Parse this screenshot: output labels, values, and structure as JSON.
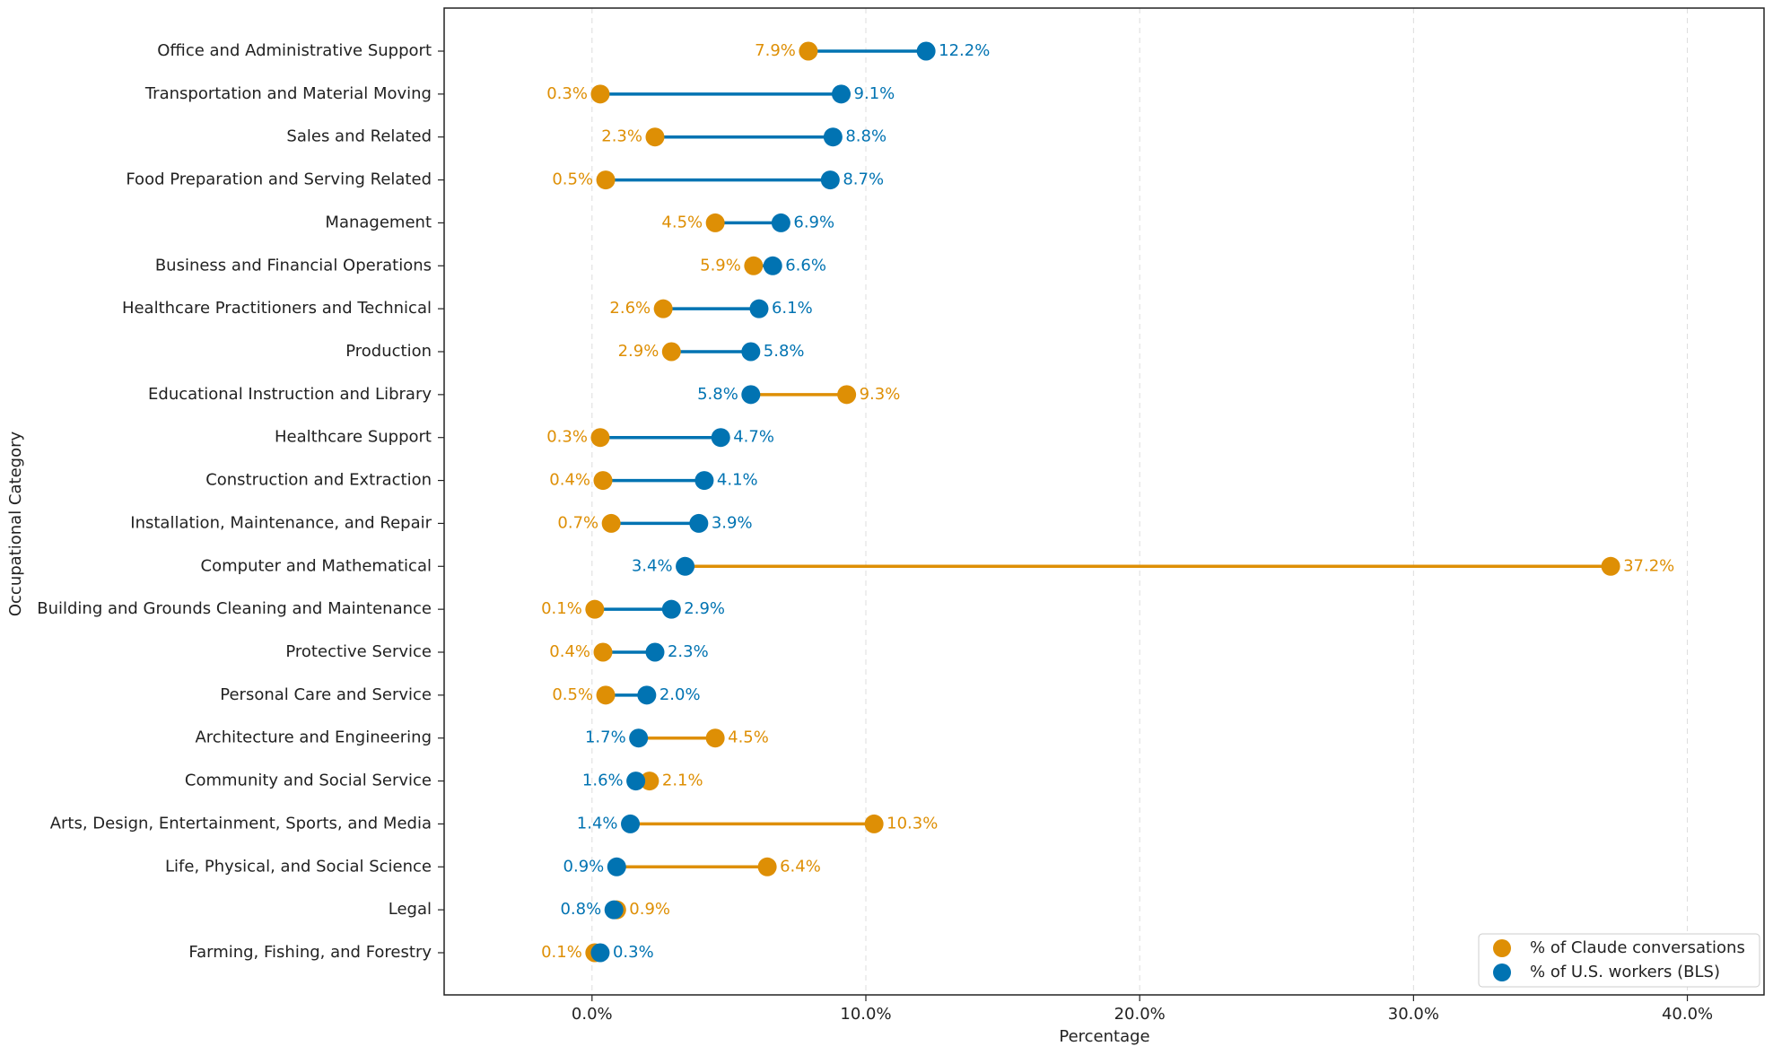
{
  "chart_data": {
    "type": "dumbbell",
    "xlabel": "Percentage",
    "ylabel": "Occupational Category",
    "categories": [
      "Office and Administrative Support",
      "Transportation and Material Moving",
      "Sales and Related",
      "Food Preparation and Serving Related",
      "Management",
      "Business and Financial Operations",
      "Healthcare Practitioners and Technical",
      "Production",
      "Educational Instruction and Library",
      "Healthcare Support",
      "Construction and Extraction",
      "Installation, Maintenance, and Repair",
      "Computer and Mathematical",
      "Building and Grounds Cleaning and Maintenance",
      "Protective Service",
      "Personal Care and Service",
      "Architecture and Engineering",
      "Community and Social Service",
      "Arts, Design, Entertainment, Sports, and Media",
      "Life, Physical, and Social Science",
      "Legal",
      "Farming, Fishing, and Forestry"
    ],
    "series": [
      {
        "name": "% of Claude conversations",
        "color": "#DE8F05",
        "values": [
          7.9,
          0.3,
          2.3,
          0.5,
          4.5,
          5.9,
          2.6,
          2.9,
          9.3,
          0.3,
          0.4,
          0.7,
          37.2,
          0.1,
          0.4,
          0.5,
          4.5,
          2.1,
          10.3,
          6.4,
          0.9,
          0.1
        ],
        "value_labels": [
          "7.9%",
          "0.3%",
          "2.3%",
          "0.5%",
          "4.5%",
          "5.9%",
          "2.6%",
          "2.9%",
          "9.3%",
          "0.3%",
          "0.4%",
          "0.7%",
          "37.2%",
          "0.1%",
          "0.4%",
          "0.5%",
          "4.5%",
          "2.1%",
          "10.3%",
          "6.4%",
          "0.9%",
          "0.1%"
        ]
      },
      {
        "name": "% of U.S. workers (BLS)",
        "color": "#0173B2",
        "values": [
          12.2,
          9.1,
          8.8,
          8.7,
          6.9,
          6.6,
          6.1,
          5.8,
          5.8,
          4.7,
          4.1,
          3.9,
          3.4,
          2.9,
          2.3,
          2.0,
          1.7,
          1.6,
          1.4,
          0.9,
          0.8,
          0.3
        ],
        "value_labels": [
          "12.2%",
          "9.1%",
          "8.8%",
          "8.7%",
          "6.9%",
          "6.6%",
          "6.1%",
          "5.8%",
          "5.8%",
          "4.7%",
          "4.1%",
          "3.9%",
          "3.4%",
          "2.9%",
          "2.3%",
          "2.0%",
          "1.7%",
          "1.6%",
          "1.4%",
          "0.9%",
          "0.8%",
          "0.3%"
        ]
      }
    ],
    "xlim": [
      -5.4,
      42.8
    ],
    "xticks": [
      {
        "value": 0,
        "label": "0.0%"
      },
      {
        "value": 10,
        "label": "10.0%"
      },
      {
        "value": 20,
        "label": "20.0%"
      },
      {
        "value": 30,
        "label": "30.0%"
      },
      {
        "value": 40,
        "label": "40.0%"
      }
    ],
    "grid": true,
    "legend": "lower right"
  }
}
